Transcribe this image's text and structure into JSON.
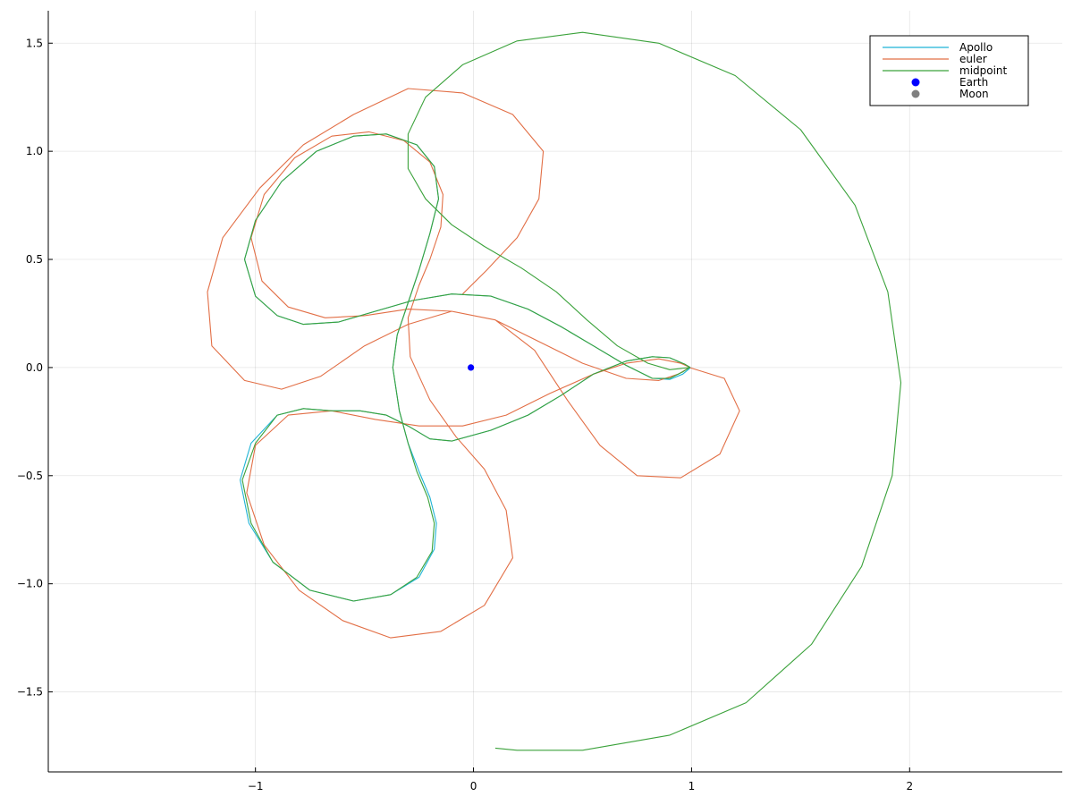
{
  "chart_data": {
    "type": "line",
    "title": "",
    "xlabel": "",
    "ylabel": "",
    "xlim": [
      -1.95,
      2.7
    ],
    "ylim": [
      -1.87,
      1.65
    ],
    "grid": true,
    "legend_position": "top-right",
    "x_ticks": [
      -1,
      0,
      1,
      2
    ],
    "x_tick_labels": [
      "−1",
      "0",
      "1",
      "2"
    ],
    "y_ticks": [
      -1.5,
      -1.0,
      -0.5,
      0.0,
      0.5,
      1.0,
      1.5
    ],
    "y_tick_labels": [
      "−1.5",
      "−1.0",
      "−0.5",
      "0.0",
      "0.5",
      "1.0",
      "1.5"
    ],
    "series": [
      {
        "name": "Apollo",
        "kind": "line",
        "color": "#1fb4d6",
        "points": [
          [
            0.994,
            0.0
          ],
          [
            0.97,
            0.015
          ],
          [
            0.9,
            0.045
          ],
          [
            0.82,
            0.05
          ],
          [
            0.7,
            0.03
          ],
          [
            0.55,
            -0.03
          ],
          [
            0.4,
            -0.13
          ],
          [
            0.25,
            -0.22
          ],
          [
            0.08,
            -0.29
          ],
          [
            -0.1,
            -0.34
          ],
          [
            -0.2,
            -0.33
          ],
          [
            -0.3,
            -0.27
          ],
          [
            -0.4,
            -0.22
          ],
          [
            -0.52,
            -0.2
          ],
          [
            -0.65,
            -0.2
          ],
          [
            -0.78,
            -0.19
          ],
          [
            -0.9,
            -0.22
          ],
          [
            -1.02,
            -0.35
          ],
          [
            -1.07,
            -0.52
          ],
          [
            -1.03,
            -0.72
          ],
          [
            -0.92,
            -0.9
          ],
          [
            -0.75,
            -1.03
          ],
          [
            -0.55,
            -1.08
          ],
          [
            -0.38,
            -1.05
          ],
          [
            -0.25,
            -0.97
          ],
          [
            -0.18,
            -0.84
          ],
          [
            -0.17,
            -0.72
          ],
          [
            -0.2,
            -0.6
          ],
          [
            -0.25,
            -0.48
          ],
          [
            -0.3,
            -0.35
          ],
          [
            -0.34,
            -0.2
          ],
          [
            -0.37,
            0.0
          ],
          [
            -0.35,
            0.15
          ],
          [
            -0.3,
            0.3
          ],
          [
            -0.25,
            0.45
          ],
          [
            -0.2,
            0.62
          ],
          [
            -0.16,
            0.78
          ],
          [
            -0.18,
            0.93
          ],
          [
            -0.26,
            1.03
          ],
          [
            -0.4,
            1.08
          ],
          [
            -0.55,
            1.07
          ],
          [
            -0.72,
            1.0
          ],
          [
            -0.88,
            0.86
          ],
          [
            -1.0,
            0.68
          ],
          [
            -1.05,
            0.5
          ],
          [
            -1.0,
            0.33
          ],
          [
            -0.9,
            0.24
          ],
          [
            -0.78,
            0.2
          ],
          [
            -0.62,
            0.21
          ],
          [
            -0.45,
            0.26
          ],
          [
            -0.28,
            0.31
          ],
          [
            -0.1,
            0.34
          ],
          [
            0.08,
            0.33
          ],
          [
            0.25,
            0.27
          ],
          [
            0.4,
            0.19
          ],
          [
            0.55,
            0.1
          ],
          [
            0.7,
            0.01
          ],
          [
            0.82,
            -0.05
          ],
          [
            0.9,
            -0.055
          ],
          [
            0.96,
            -0.03
          ],
          [
            0.99,
            -0.005
          ],
          [
            0.994,
            0.0
          ]
        ]
      },
      {
        "name": "euler",
        "kind": "line",
        "color": "#e26f46",
        "points": [
          [
            0.994,
            0.0
          ],
          [
            0.95,
            0.02
          ],
          [
            0.85,
            0.04
          ],
          [
            0.7,
            0.02
          ],
          [
            0.55,
            -0.03
          ],
          [
            0.35,
            -0.12
          ],
          [
            0.15,
            -0.22
          ],
          [
            -0.05,
            -0.27
          ],
          [
            -0.25,
            -0.27
          ],
          [
            -0.45,
            -0.24
          ],
          [
            -0.65,
            -0.2
          ],
          [
            -0.85,
            -0.22
          ],
          [
            -1.0,
            -0.36
          ],
          [
            -1.04,
            -0.58
          ],
          [
            -0.96,
            -0.82
          ],
          [
            -0.8,
            -1.03
          ],
          [
            -0.6,
            -1.17
          ],
          [
            -0.38,
            -1.25
          ],
          [
            -0.15,
            -1.22
          ],
          [
            0.05,
            -1.1
          ],
          [
            0.18,
            -0.88
          ],
          [
            0.15,
            -0.66
          ],
          [
            0.05,
            -0.47
          ],
          [
            -0.08,
            -0.32
          ],
          [
            -0.2,
            -0.15
          ],
          [
            -0.29,
            0.05
          ],
          [
            -0.3,
            0.23
          ],
          [
            -0.25,
            0.38
          ],
          [
            -0.2,
            0.5
          ],
          [
            -0.15,
            0.65
          ],
          [
            -0.14,
            0.8
          ],
          [
            -0.2,
            0.95
          ],
          [
            -0.32,
            1.05
          ],
          [
            -0.48,
            1.09
          ],
          [
            -0.65,
            1.07
          ],
          [
            -0.82,
            0.97
          ],
          [
            -0.96,
            0.8
          ],
          [
            -1.02,
            0.6
          ],
          [
            -0.97,
            0.4
          ],
          [
            -0.85,
            0.28
          ],
          [
            -0.68,
            0.23
          ],
          [
            -0.5,
            0.24
          ],
          [
            -0.3,
            0.27
          ],
          [
            -0.1,
            0.26
          ],
          [
            0.1,
            0.22
          ],
          [
            0.3,
            0.12
          ],
          [
            0.5,
            0.02
          ],
          [
            0.7,
            -0.05
          ],
          [
            0.85,
            -0.06
          ],
          [
            0.94,
            -0.03
          ],
          [
            0.99,
            0.0
          ],
          [
            1.15,
            -0.05
          ],
          [
            1.22,
            -0.2
          ],
          [
            1.13,
            -0.4
          ],
          [
            0.95,
            -0.51
          ],
          [
            0.75,
            -0.5
          ],
          [
            0.58,
            -0.36
          ],
          [
            0.43,
            -0.15
          ],
          [
            0.28,
            0.08
          ],
          [
            0.1,
            0.22
          ],
          [
            -0.1,
            0.26
          ],
          [
            -0.3,
            0.2
          ],
          [
            -0.5,
            0.1
          ],
          [
            -0.7,
            -0.04
          ],
          [
            -0.88,
            -0.1
          ],
          [
            -1.05,
            -0.06
          ],
          [
            -1.2,
            0.1
          ],
          [
            -1.22,
            0.35
          ],
          [
            -1.15,
            0.6
          ],
          [
            -0.98,
            0.83
          ],
          [
            -0.78,
            1.03
          ],
          [
            -0.55,
            1.17
          ],
          [
            -0.3,
            1.29
          ],
          [
            -0.05,
            1.27
          ],
          [
            0.18,
            1.17
          ],
          [
            0.32,
            1.0
          ],
          [
            0.3,
            0.78
          ],
          [
            0.2,
            0.6
          ],
          [
            0.06,
            0.45
          ],
          [
            -0.05,
            0.34
          ]
        ]
      },
      {
        "name": "midpoint",
        "kind": "line",
        "color": "#3ba23b",
        "points": [
          [
            0.994,
            0.0
          ],
          [
            0.97,
            0.015
          ],
          [
            0.9,
            0.045
          ],
          [
            0.82,
            0.05
          ],
          [
            0.7,
            0.03
          ],
          [
            0.55,
            -0.03
          ],
          [
            0.4,
            -0.13
          ],
          [
            0.25,
            -0.22
          ],
          [
            0.08,
            -0.29
          ],
          [
            -0.1,
            -0.34
          ],
          [
            -0.2,
            -0.33
          ],
          [
            -0.3,
            -0.27
          ],
          [
            -0.4,
            -0.22
          ],
          [
            -0.52,
            -0.2
          ],
          [
            -0.65,
            -0.2
          ],
          [
            -0.78,
            -0.19
          ],
          [
            -0.9,
            -0.22
          ],
          [
            -1.0,
            -0.35
          ],
          [
            -1.06,
            -0.52
          ],
          [
            -1.02,
            -0.72
          ],
          [
            -0.92,
            -0.9
          ],
          [
            -0.75,
            -1.03
          ],
          [
            -0.55,
            -1.08
          ],
          [
            -0.38,
            -1.05
          ],
          [
            -0.26,
            -0.97
          ],
          [
            -0.19,
            -0.85
          ],
          [
            -0.18,
            -0.72
          ],
          [
            -0.21,
            -0.6
          ],
          [
            -0.26,
            -0.48
          ],
          [
            -0.3,
            -0.35
          ],
          [
            -0.34,
            -0.2
          ],
          [
            -0.37,
            0.0
          ],
          [
            -0.35,
            0.15
          ],
          [
            -0.3,
            0.3
          ],
          [
            -0.25,
            0.45
          ],
          [
            -0.2,
            0.62
          ],
          [
            -0.16,
            0.78
          ],
          [
            -0.18,
            0.93
          ],
          [
            -0.26,
            1.03
          ],
          [
            -0.4,
            1.08
          ],
          [
            -0.55,
            1.07
          ],
          [
            -0.72,
            1.0
          ],
          [
            -0.88,
            0.86
          ],
          [
            -1.0,
            0.68
          ],
          [
            -1.05,
            0.5
          ],
          [
            -1.0,
            0.33
          ],
          [
            -0.9,
            0.24
          ],
          [
            -0.78,
            0.2
          ],
          [
            -0.62,
            0.21
          ],
          [
            -0.45,
            0.26
          ],
          [
            -0.28,
            0.31
          ],
          [
            -0.1,
            0.34
          ],
          [
            0.08,
            0.33
          ],
          [
            0.25,
            0.27
          ],
          [
            0.4,
            0.19
          ],
          [
            0.55,
            0.1
          ],
          [
            0.7,
            0.01
          ],
          [
            0.82,
            -0.05
          ],
          [
            0.9,
            -0.05
          ],
          [
            0.96,
            -0.02
          ],
          [
            0.99,
            0.0
          ],
          [
            0.9,
            -0.01
          ],
          [
            0.8,
            0.02
          ],
          [
            0.66,
            0.1
          ],
          [
            0.52,
            0.22
          ],
          [
            0.38,
            0.35
          ],
          [
            0.22,
            0.46
          ],
          [
            0.05,
            0.56
          ],
          [
            -0.1,
            0.66
          ],
          [
            -0.22,
            0.78
          ],
          [
            -0.3,
            0.92
          ],
          [
            -0.3,
            1.08
          ],
          [
            -0.22,
            1.25
          ],
          [
            -0.05,
            1.4
          ],
          [
            0.2,
            1.51
          ],
          [
            0.5,
            1.55
          ],
          [
            0.85,
            1.5
          ],
          [
            1.2,
            1.35
          ],
          [
            1.5,
            1.1
          ],
          [
            1.75,
            0.75
          ],
          [
            1.9,
            0.35
          ],
          [
            1.96,
            -0.07
          ],
          [
            1.92,
            -0.5
          ],
          [
            1.78,
            -0.92
          ],
          [
            1.55,
            -1.28
          ],
          [
            1.25,
            -1.55
          ],
          [
            0.9,
            -1.7
          ],
          [
            0.5,
            -1.77
          ],
          [
            0.2,
            -1.77
          ],
          [
            0.1,
            -1.76
          ]
        ]
      },
      {
        "name": "Earth",
        "kind": "scatter",
        "color": "#0000ff",
        "points": [
          [
            -0.012,
            0.0
          ]
        ]
      },
      {
        "name": "Moon",
        "kind": "scatter",
        "color": "#808080",
        "points": []
      }
    ]
  }
}
